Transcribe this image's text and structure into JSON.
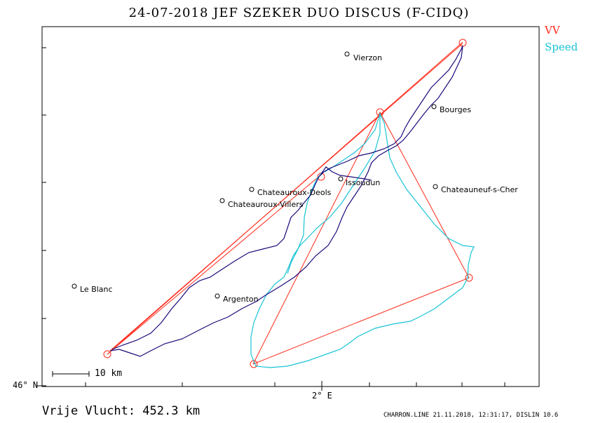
{
  "title": "24-07-2018   JEF SZEKER   DUO DISCUS (F-CIDQ)",
  "legend": {
    "vv": "VV",
    "speed": "Speed"
  },
  "colors": {
    "vv": "#ff2a1a",
    "speed": "#19c3d6",
    "track": "#1a0a7a",
    "frame": "#000000"
  },
  "axes": {
    "lat_label": "46° N",
    "lon_label": "2° E"
  },
  "scale": {
    "label": "10 km"
  },
  "distance_text": "Vrije Vlucht:  452.3 km",
  "footer": "CHARRON.LINE 21.11.2018, 12:31:17, DISLIN 10.6",
  "towns": [
    {
      "name": "Vierzon"
    },
    {
      "name": "Bourges"
    },
    {
      "name": "Issoudun"
    },
    {
      "name": "Chateauroux-Deols"
    },
    {
      "name": "Chateauroux-Villers"
    },
    {
      "name": "Chateauneuf-s-Cher"
    },
    {
      "name": "Le Blanc"
    },
    {
      "name": "Argenton"
    }
  ]
}
